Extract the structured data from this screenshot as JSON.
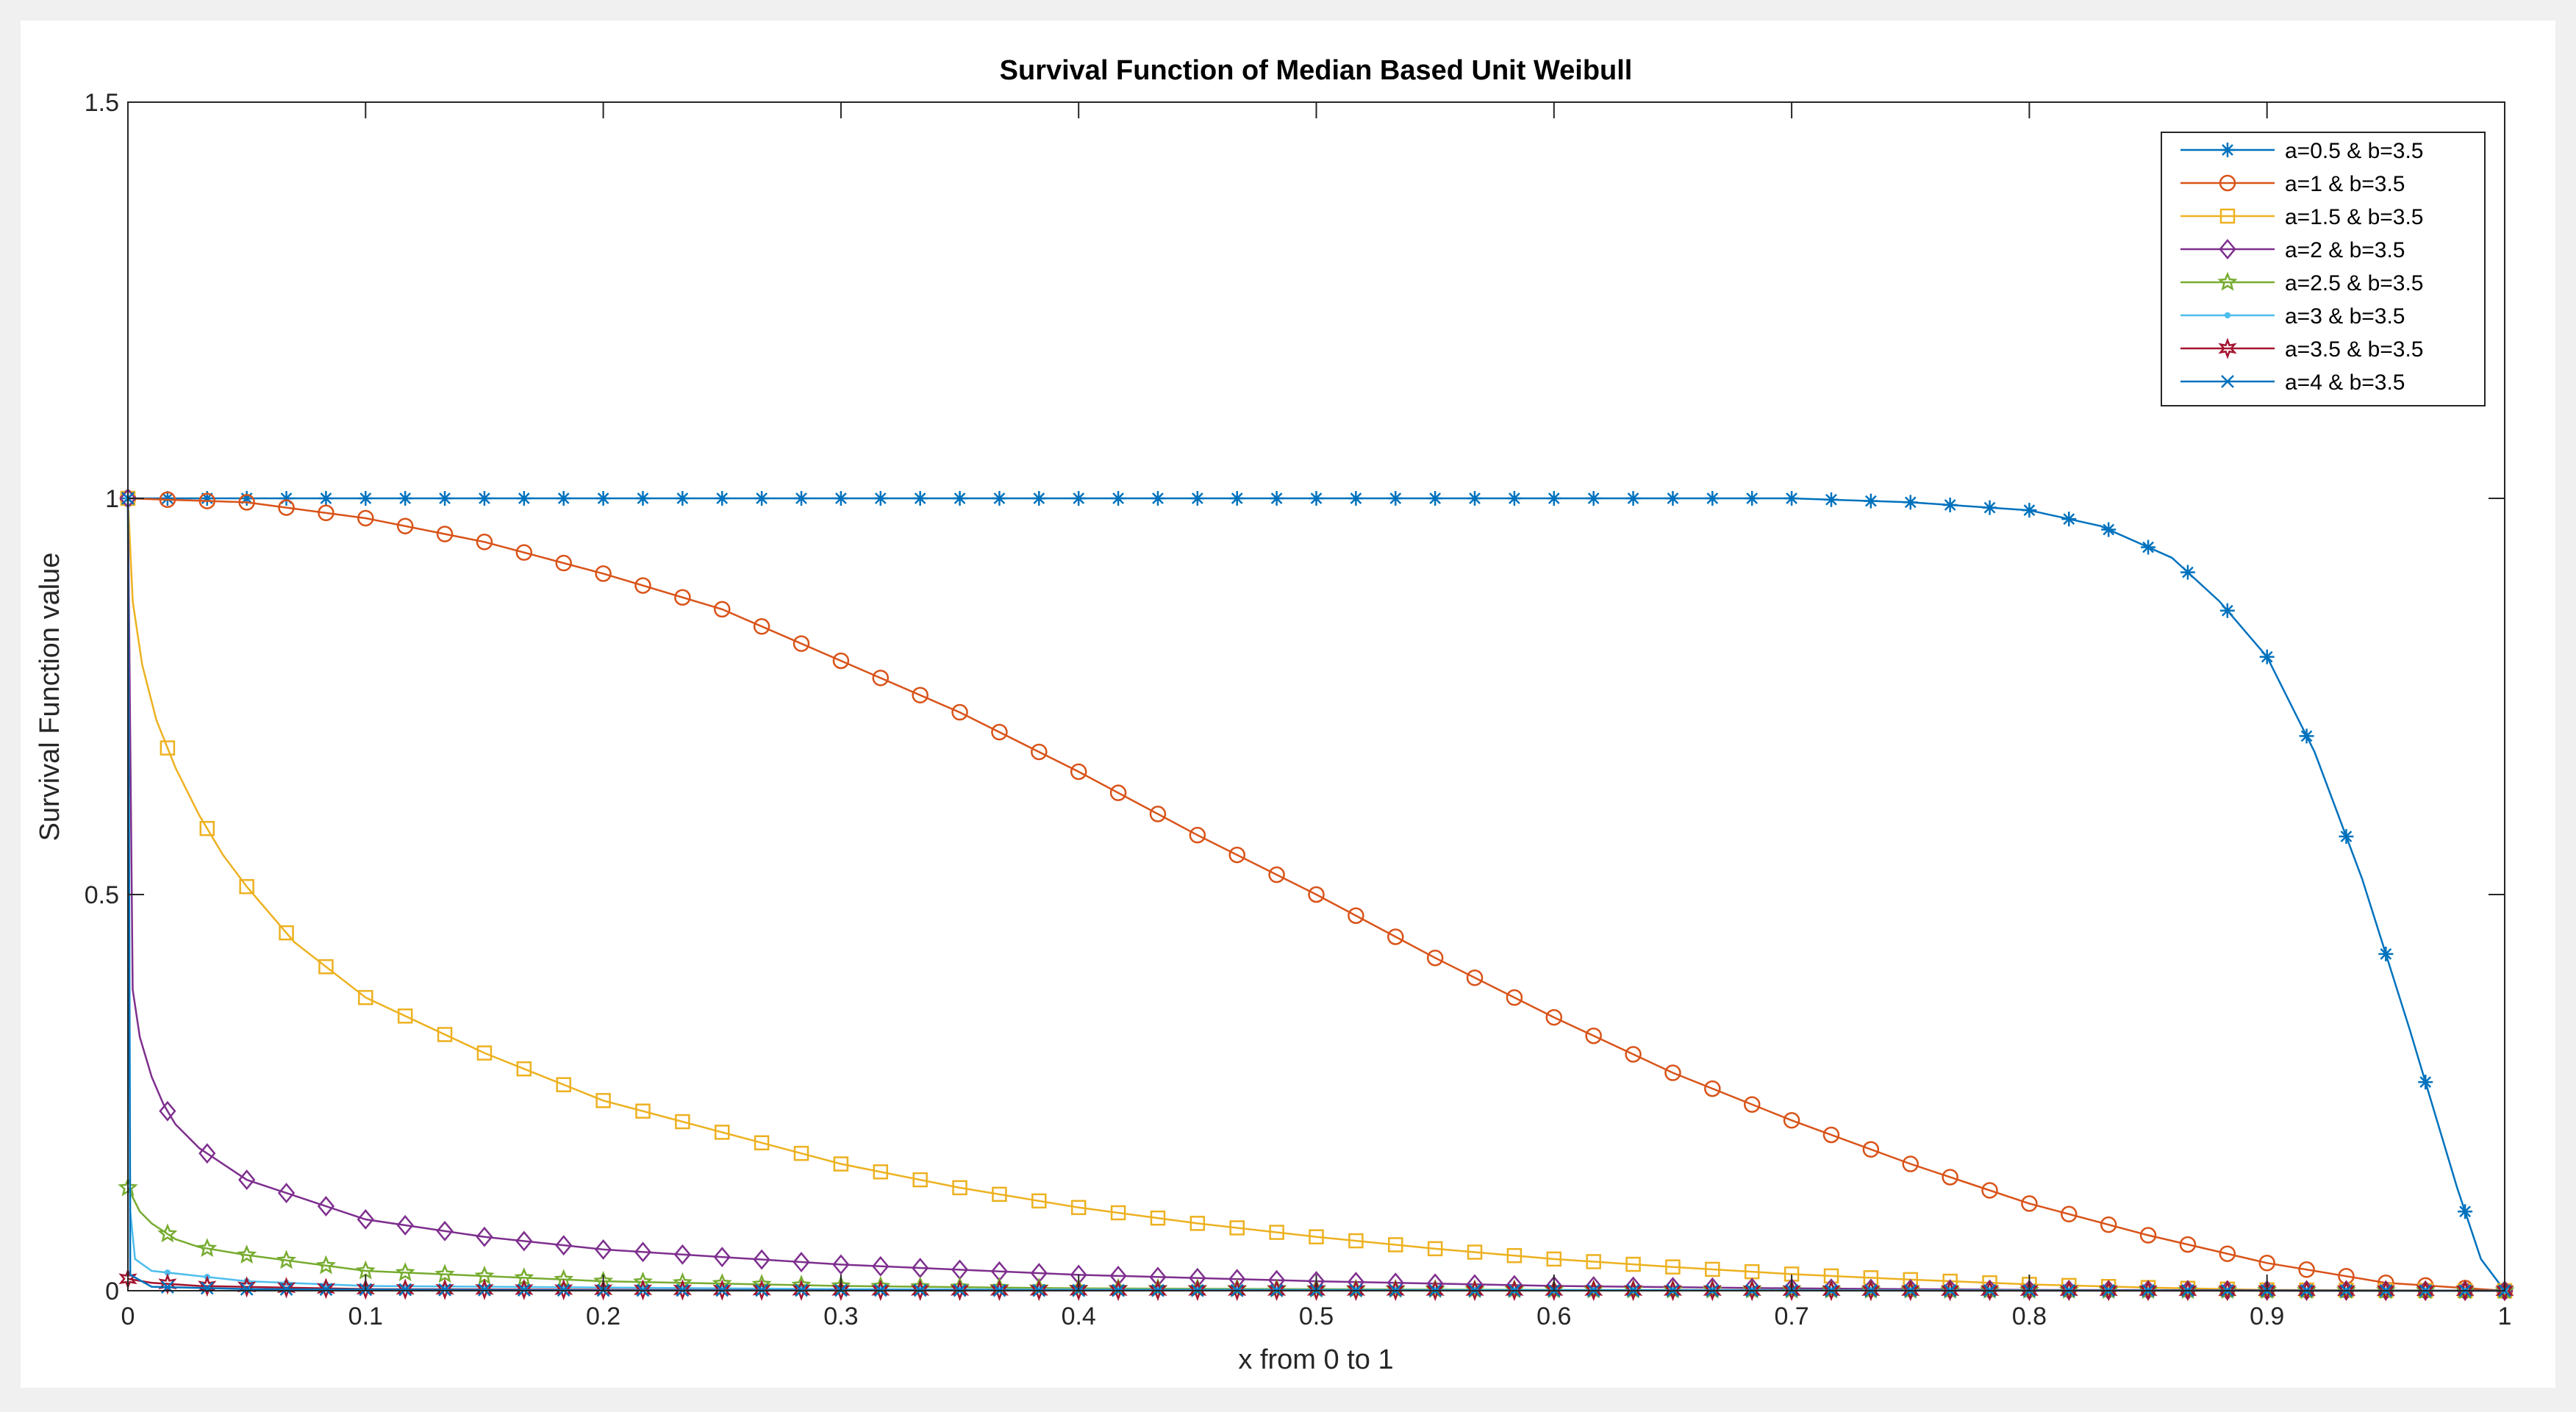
{
  "chart_data": {
    "type": "line",
    "title": "Survival Function of Median  Based  Unit Weibull",
    "xlabel": "x from 0 to 1",
    "ylabel": "Survival Function value",
    "xlim": [
      0,
      1
    ],
    "ylim": [
      0,
      1.5
    ],
    "xticks": [
      0,
      0.1,
      0.2,
      0.3,
      0.4,
      0.5,
      0.6,
      0.7,
      0.8,
      0.9,
      1
    ],
    "xtick_labels": [
      "0",
      "0.1",
      "0.2",
      "0.3",
      "0.4",
      "0.5",
      "0.6",
      "0.7",
      "0.8",
      "0.9",
      "1"
    ],
    "yticks": [
      0,
      0.5,
      1,
      1.5
    ],
    "ytick_labels": [
      "0",
      "0.5",
      "1",
      "1.5"
    ],
    "grid": false,
    "legend_position": "top-right",
    "series": [
      {
        "name": "a=0.5  &  b=3.5",
        "color": "#0072BD",
        "marker": "asterisk",
        "points": [
          [
            0,
            1
          ],
          [
            0.1,
            1
          ],
          [
            0.2,
            1
          ],
          [
            0.3,
            1
          ],
          [
            0.4,
            1
          ],
          [
            0.5,
            1
          ],
          [
            0.6,
            1
          ],
          [
            0.7,
            1
          ],
          [
            0.75,
            0.995
          ],
          [
            0.8,
            0.985
          ],
          [
            0.83,
            0.965
          ],
          [
            0.86,
            0.925
          ],
          [
            0.88,
            0.87
          ],
          [
            0.9,
            0.8
          ],
          [
            0.92,
            0.68
          ],
          [
            0.94,
            0.52
          ],
          [
            0.96,
            0.33
          ],
          [
            0.98,
            0.13
          ],
          [
            0.99,
            0.04
          ],
          [
            1,
            0
          ]
        ]
      },
      {
        "name": "a=1 &  b=3.5",
        "color": "#D95319",
        "marker": "circle",
        "points": [
          [
            0,
            1
          ],
          [
            0.05,
            0.995
          ],
          [
            0.1,
            0.975
          ],
          [
            0.15,
            0.945
          ],
          [
            0.2,
            0.905
          ],
          [
            0.25,
            0.86
          ],
          [
            0.3,
            0.795
          ],
          [
            0.35,
            0.73
          ],
          [
            0.4,
            0.655
          ],
          [
            0.45,
            0.575
          ],
          [
            0.5,
            0.5
          ],
          [
            0.55,
            0.42
          ],
          [
            0.6,
            0.345
          ],
          [
            0.65,
            0.275
          ],
          [
            0.7,
            0.215
          ],
          [
            0.75,
            0.16
          ],
          [
            0.8,
            0.11
          ],
          [
            0.85,
            0.07
          ],
          [
            0.9,
            0.035
          ],
          [
            0.95,
            0.01
          ],
          [
            1,
            0
          ]
        ]
      },
      {
        "name": "a=1.5  &  b=3.5",
        "color": "#EDB120",
        "marker": "square",
        "points": [
          [
            0,
            1
          ],
          [
            0.002,
            0.87
          ],
          [
            0.006,
            0.79
          ],
          [
            0.012,
            0.72
          ],
          [
            0.02,
            0.66
          ],
          [
            0.03,
            0.6
          ],
          [
            0.04,
            0.55
          ],
          [
            0.05,
            0.51
          ],
          [
            0.07,
            0.44
          ],
          [
            0.1,
            0.37
          ],
          [
            0.15,
            0.3
          ],
          [
            0.2,
            0.24
          ],
          [
            0.25,
            0.2
          ],
          [
            0.3,
            0.16
          ],
          [
            0.35,
            0.13
          ],
          [
            0.4,
            0.105
          ],
          [
            0.45,
            0.085
          ],
          [
            0.5,
            0.068
          ],
          [
            0.55,
            0.053
          ],
          [
            0.6,
            0.04
          ],
          [
            0.65,
            0.03
          ],
          [
            0.7,
            0.021
          ],
          [
            0.75,
            0.014
          ],
          [
            0.8,
            0.008
          ],
          [
            0.85,
            0.004
          ],
          [
            0.9,
            0.001
          ],
          [
            1,
            0
          ]
        ]
      },
      {
        "name": "a=2  &  b=3.5",
        "color": "#7E2F8E",
        "marker": "diamond",
        "points": [
          [
            0,
            1
          ],
          [
            0.002,
            0.38
          ],
          [
            0.005,
            0.32
          ],
          [
            0.01,
            0.27
          ],
          [
            0.015,
            0.235
          ],
          [
            0.02,
            0.21
          ],
          [
            0.03,
            0.18
          ],
          [
            0.05,
            0.14
          ],
          [
            0.08,
            0.11
          ],
          [
            0.1,
            0.09
          ],
          [
            0.15,
            0.068
          ],
          [
            0.2,
            0.052
          ],
          [
            0.3,
            0.033
          ],
          [
            0.4,
            0.02
          ],
          [
            0.5,
            0.012
          ],
          [
            0.6,
            0.006
          ],
          [
            0.7,
            0.003
          ],
          [
            0.8,
            0.001
          ],
          [
            1,
            0
          ]
        ]
      },
      {
        "name": "a=2.5  &  b=3.5",
        "color": "#77AC30",
        "marker": "pentagram",
        "points": [
          [
            0,
            0.13
          ],
          [
            0.005,
            0.1
          ],
          [
            0.01,
            0.085
          ],
          [
            0.02,
            0.065
          ],
          [
            0.03,
            0.055
          ],
          [
            0.05,
            0.045
          ],
          [
            0.1,
            0.025
          ],
          [
            0.2,
            0.012
          ],
          [
            0.3,
            0.006
          ],
          [
            0.4,
            0.003
          ],
          [
            0.6,
            0.001
          ],
          [
            1,
            0
          ]
        ]
      },
      {
        "name": "a=3 &  b=3.5",
        "color": "#4DBEEE",
        "marker": "point",
        "points": [
          [
            0,
            1
          ],
          [
            0.001,
            0.1
          ],
          [
            0.003,
            0.04
          ],
          [
            0.01,
            0.025
          ],
          [
            0.05,
            0.012
          ],
          [
            0.1,
            0.006
          ],
          [
            0.3,
            0.002
          ],
          [
            0.5,
            0.001
          ],
          [
            1,
            0
          ]
        ]
      },
      {
        "name": "a=3.5  &  b=3.5",
        "color": "#A2142F",
        "marker": "hexagram",
        "points": [
          [
            0,
            0.015
          ],
          [
            0.01,
            0.01
          ],
          [
            0.03,
            0.006
          ],
          [
            0.1,
            0.002
          ],
          [
            0.3,
            0.0005
          ],
          [
            1,
            0
          ]
        ]
      },
      {
        "name": "a=4  &   b=3.5",
        "color": "#0072BD",
        "marker": "cross",
        "points": [
          [
            0,
            1
          ],
          [
            0.001,
            0.02
          ],
          [
            0.01,
            0.005
          ],
          [
            0.05,
            0.002
          ],
          [
            0.2,
            0.0005
          ],
          [
            1,
            0
          ]
        ]
      }
    ]
  }
}
